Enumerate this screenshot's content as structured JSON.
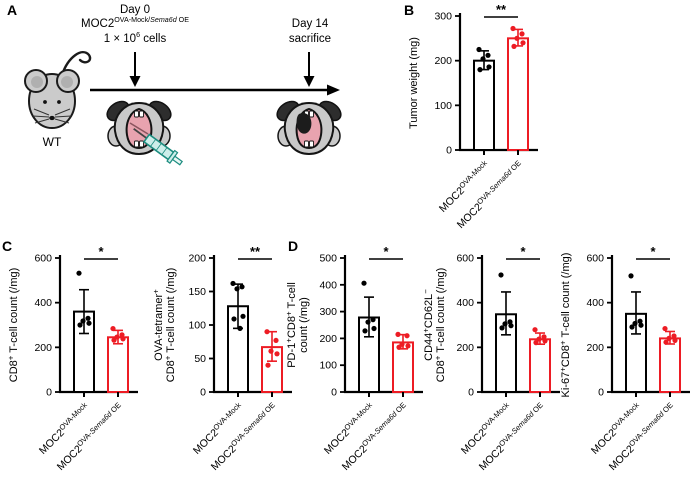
{
  "panels": {
    "a": "A",
    "b": "B",
    "c": "C",
    "d": "D"
  },
  "colors": {
    "mock": "#000000",
    "sema6d_oe": "#ed1c24",
    "mouse_gray": "#c9c9c9",
    "mouth_pink": "#e8a3af",
    "syringe_teal": "#1d8d80",
    "tumor_black": "#1c1c1c"
  },
  "schematic": {
    "wt_label": "WT",
    "day0_title": "Day 0",
    "day0_cell_line": [
      {
        "t": "MOC2"
      },
      {
        "t": "OVA-Mock/",
        "sup": true
      },
      {
        "t": "Sema6d",
        "sup": true,
        "i": true
      },
      {
        "t": " OE",
        "sup": true
      }
    ],
    "day0_dose": [
      {
        "t": "1 × 10"
      },
      {
        "t": "6",
        "sup": true
      },
      {
        "t": " cells"
      }
    ],
    "day14_title": "Day 14",
    "day14_subtitle": "sacrifice",
    "icons": [
      "wt-mouse-icon",
      "injection-mouse-icon",
      "syringe-icon",
      "tumor-mouse-icon",
      "timeline-arrow"
    ]
  },
  "group_labels": [
    [
      {
        "t": "MOC2"
      },
      {
        "t": "OVA-Mock",
        "sup": true
      }
    ],
    [
      {
        "t": "MOC2"
      },
      {
        "t": "OVA-",
        "sup": true
      },
      {
        "t": "Sema6d",
        "sup": true,
        "i": true
      },
      {
        "t": " OE",
        "sup": true
      }
    ]
  ],
  "group_names": [
    "MOC2 OVA-Mock",
    "MOC2 OVA-Sema6d OE"
  ],
  "chart_data": [
    {
      "panel": "B",
      "type": "bar",
      "ylabel": [
        [
          {
            "t": "Tumor weight (mg)"
          }
        ]
      ],
      "ylim": [
        0,
        300
      ],
      "yticks": [
        0,
        100,
        200,
        300
      ],
      "significance": "**",
      "series": [
        {
          "name": "MOC2 OVA-Mock",
          "color": "#000000",
          "mean": 200,
          "err": [
            180,
            222
          ],
          "points": [
            225,
            212,
            204,
            186,
            180
          ]
        },
        {
          "name": "MOC2 OVA-Sema6d OE",
          "color": "#ed1c24",
          "mean": 250,
          "err": [
            233,
            270
          ],
          "points": [
            272,
            260,
            250,
            240,
            232
          ]
        }
      ]
    },
    {
      "panel": "C",
      "type": "bar",
      "ylabel": [
        [
          {
            "t": "CD8"
          },
          {
            "t": "+",
            "sup": true
          },
          {
            "t": " T-cell count (/mg)"
          }
        ]
      ],
      "ylim": [
        0,
        600
      ],
      "yticks": [
        0,
        200,
        400,
        600
      ],
      "significance": "*",
      "series": [
        {
          "name": "MOC2 OVA-Mock",
          "color": "#000000",
          "mean": 360,
          "err": [
            262,
            458
          ],
          "points": [
            532,
            330,
            318,
            308,
            300
          ]
        },
        {
          "name": "MOC2 OVA-Sema6d OE",
          "color": "#ed1c24",
          "mean": 245,
          "err": [
            216,
            276
          ],
          "points": [
            284,
            256,
            246,
            238,
            232
          ]
        }
      ]
    },
    {
      "panel": "C",
      "type": "bar",
      "ylabel": [
        [
          {
            "t": "OVA-tetramer"
          },
          {
            "t": "+",
            "sup": true
          }
        ],
        [
          {
            "t": "CD8"
          },
          {
            "t": "+",
            "sup": true
          },
          {
            "t": " T-cell count (/mg)"
          }
        ]
      ],
      "ylim": [
        0,
        200
      ],
      "yticks": [
        0,
        50,
        100,
        150,
        200
      ],
      "significance": "**",
      "series": [
        {
          "name": "MOC2 OVA-Mock",
          "color": "#000000",
          "mean": 128,
          "err": [
            95,
            161
          ],
          "points": [
            162,
            157,
            154,
            113,
            109,
            95
          ]
        },
        {
          "name": "MOC2 OVA-Sema6d OE",
          "color": "#ed1c24",
          "mean": 67,
          "err": [
            46,
            90
          ],
          "points": [
            90,
            77,
            61,
            57,
            40
          ]
        }
      ]
    },
    {
      "panel": "D",
      "type": "bar",
      "ylabel": [
        [
          {
            "t": "PD-1"
          },
          {
            "t": "+",
            "sup": true
          },
          {
            "t": "CD8"
          },
          {
            "t": "+",
            "sup": true
          },
          {
            "t": " T-cell"
          }
        ],
        [
          {
            "t": "count (/mg)"
          }
        ]
      ],
      "ylim": [
        0,
        500
      ],
      "yticks": [
        0,
        100,
        200,
        300,
        400,
        500
      ],
      "significance": "*",
      "series": [
        {
          "name": "MOC2 OVA-Mock",
          "color": "#000000",
          "mean": 278,
          "err": [
            206,
            354
          ],
          "points": [
            406,
            270,
            261,
            237,
            228
          ]
        },
        {
          "name": "MOC2 OVA-Sema6d OE",
          "color": "#ed1c24",
          "mean": 185,
          "err": [
            161,
            214
          ],
          "points": [
            215,
            210,
            178,
            172,
            167
          ]
        }
      ]
    },
    {
      "panel": "D",
      "type": "bar",
      "ylabel": [
        [
          {
            "t": "CD44"
          },
          {
            "t": "+",
            "sup": true
          },
          {
            "t": "CD62L"
          },
          {
            "t": "−",
            "sup": true
          }
        ],
        [
          {
            "t": "CD8"
          },
          {
            "t": "+",
            "sup": true
          },
          {
            "t": " T-cell count (/mg)"
          }
        ]
      ],
      "ylim": [
        0,
        600
      ],
      "yticks": [
        0,
        200,
        400,
        600
      ],
      "significance": "*",
      "series": [
        {
          "name": "MOC2 OVA-Mock",
          "color": "#000000",
          "mean": 348,
          "err": [
            256,
            448
          ],
          "points": [
            524,
            314,
            305,
            297,
            287
          ]
        },
        {
          "name": "MOC2 OVA-Sema6d OE",
          "color": "#ed1c24",
          "mean": 236,
          "err": [
            214,
            264
          ],
          "points": [
            279,
            247,
            237,
            229,
            221
          ]
        }
      ]
    },
    {
      "panel": "D",
      "type": "bar",
      "ylabel": [
        [
          {
            "t": "Ki-67"
          },
          {
            "t": "+",
            "sup": true
          },
          {
            "t": "CD8"
          },
          {
            "t": "+",
            "sup": true
          },
          {
            "t": " T-cell count (/mg)"
          }
        ]
      ],
      "ylim": [
        0,
        600
      ],
      "yticks": [
        0,
        200,
        400,
        600
      ],
      "significance": "*",
      "series": [
        {
          "name": "MOC2 OVA-Mock",
          "color": "#000000",
          "mean": 350,
          "err": [
            260,
            448
          ],
          "points": [
            520,
            317,
            307,
            299,
            291
          ]
        },
        {
          "name": "MOC2 OVA-Sema6d OE",
          "color": "#ed1c24",
          "mean": 240,
          "err": [
            215,
            271
          ],
          "points": [
            284,
            251,
            240,
            231,
            223
          ]
        }
      ]
    }
  ]
}
